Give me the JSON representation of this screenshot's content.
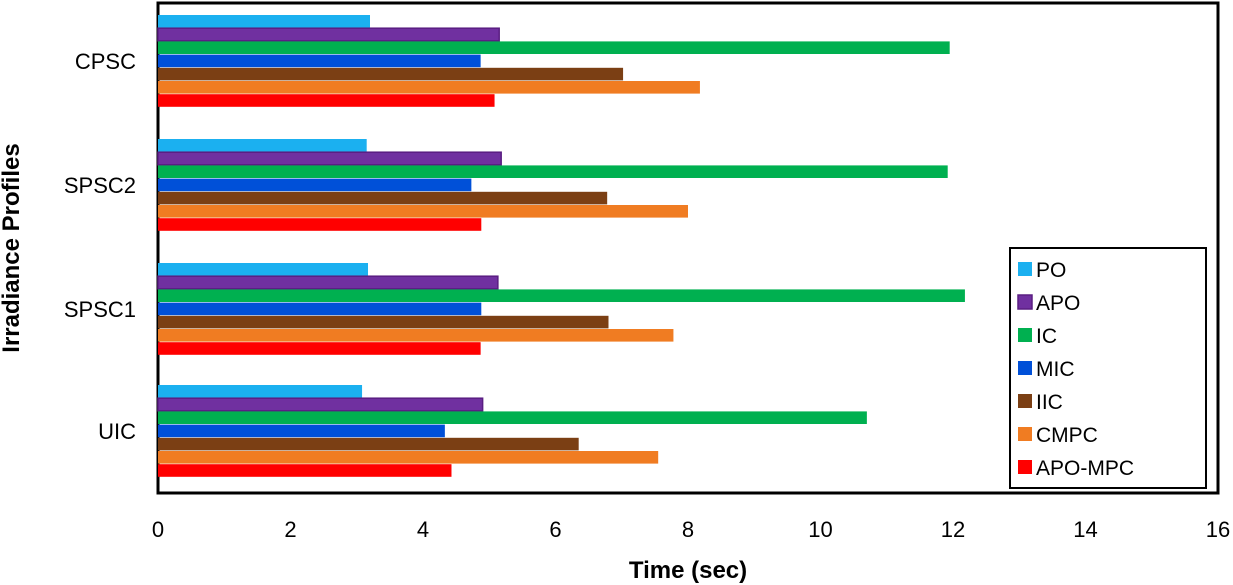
{
  "chart_data": {
    "type": "bar",
    "orientation": "horizontal",
    "title": "",
    "xlabel": "Time (sec)",
    "ylabel": "Irradiance Profiles",
    "xlim": [
      0,
      16
    ],
    "xticks": [
      0,
      2,
      4,
      6,
      8,
      10,
      12,
      14,
      16
    ],
    "grid": false,
    "legend_position": "bottom-right",
    "categories": [
      "CPSC",
      "SPSC2",
      "SPSC1",
      "UIC"
    ],
    "series": [
      {
        "name": "PO",
        "color": "#1BB0F0",
        "values": [
          3.2,
          3.15,
          3.17,
          3.08
        ]
      },
      {
        "name": "APO",
        "color": "#7030A0",
        "values": [
          5.15,
          5.18,
          5.13,
          4.9
        ]
      },
      {
        "name": "IC",
        "color": "#00B050",
        "values": [
          11.95,
          11.92,
          12.18,
          10.7
        ]
      },
      {
        "name": "MIC",
        "color": "#0050D8",
        "values": [
          4.87,
          4.73,
          4.88,
          4.33
        ]
      },
      {
        "name": "IIC",
        "color": "#7B3F14",
        "values": [
          7.02,
          6.78,
          6.8,
          6.35
        ]
      },
      {
        "name": "CMPC",
        "color": "#F07C22",
        "values": [
          8.18,
          8.0,
          7.78,
          7.55
        ]
      },
      {
        "name": "APO-MPC",
        "color": "#FF0000",
        "values": [
          5.08,
          4.88,
          4.87,
          4.43
        ]
      }
    ]
  }
}
